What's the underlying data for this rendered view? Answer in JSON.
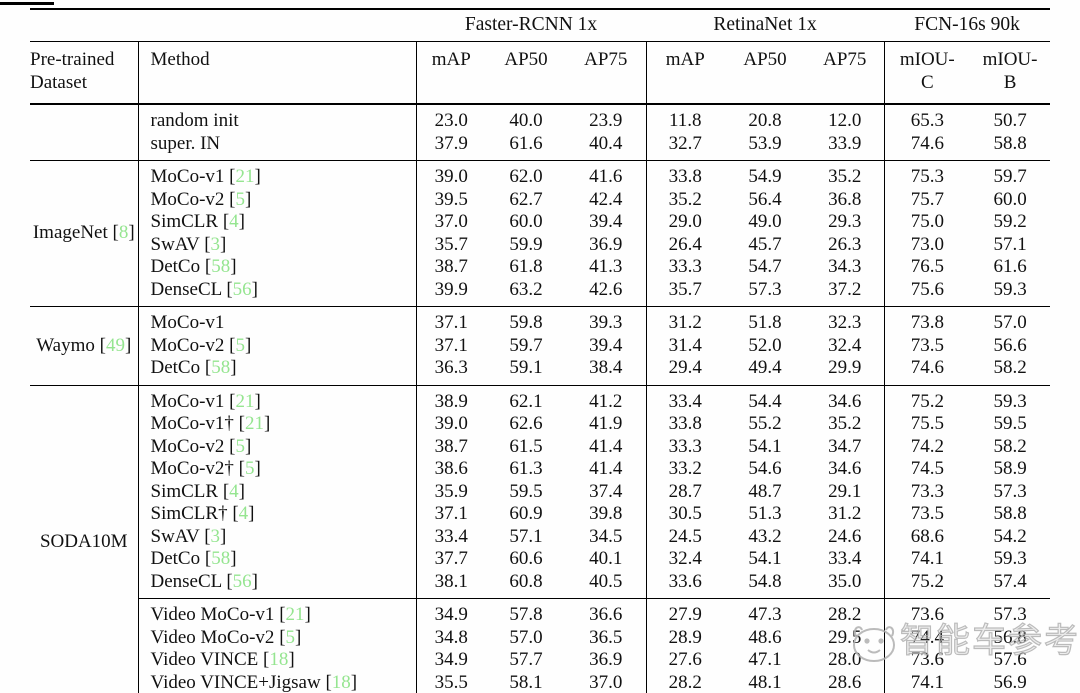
{
  "watermark": {
    "text": "智能车参考",
    "color": "#b0b0b0"
  },
  "table": {
    "cite_color": "#95e590",
    "groups": [
      {
        "label": "Faster-RCNN 1x",
        "span": 3
      },
      {
        "label": "RetinaNet 1x",
        "span": 3
      },
      {
        "label": "FCN-16s 90k",
        "span": 2
      }
    ],
    "col_headers": [
      "Pre-trained\nDataset",
      "Method",
      "mAP",
      "AP50",
      "AP75",
      "mAP",
      "AP50",
      "AP75",
      "mIOU-\nC",
      "mIOU-\nB"
    ],
    "sections": [
      {
        "dataset": null,
        "rows": [
          {
            "method": "random init",
            "cite": null,
            "vals": [
              "23.0",
              "40.0",
              "23.9",
              "11.8",
              "20.8",
              "12.0",
              "65.3",
              "50.7"
            ]
          },
          {
            "method": "super. IN",
            "cite": null,
            "vals": [
              "37.9",
              "61.6",
              "40.4",
              "32.7",
              "53.9",
              "33.9",
              "74.6",
              "58.8"
            ]
          }
        ]
      },
      {
        "dataset": {
          "label": "ImageNet",
          "cite": "8"
        },
        "rows": [
          {
            "method": "MoCo-v1",
            "cite": "21",
            "vals": [
              "39.0",
              "62.0",
              "41.6",
              "33.8",
              "54.9",
              "35.2",
              "75.3",
              "59.7"
            ]
          },
          {
            "method": "MoCo-v2",
            "cite": "5",
            "vals": [
              "39.5",
              "62.7",
              "42.4",
              "35.2",
              "56.4",
              "36.8",
              "75.7",
              "60.0"
            ]
          },
          {
            "method": "SimCLR",
            "cite": "4",
            "vals": [
              "37.0",
              "60.0",
              "39.4",
              "29.0",
              "49.0",
              "29.3",
              "75.0",
              "59.2"
            ]
          },
          {
            "method": "SwAV",
            "cite": "3",
            "vals": [
              "35.7",
              "59.9",
              "36.9",
              "26.4",
              "45.7",
              "26.3",
              "73.0",
              "57.1"
            ]
          },
          {
            "method": "DetCo",
            "cite": "58",
            "vals": [
              "38.7",
              "61.8",
              "41.3",
              "33.3",
              "54.7",
              "34.3",
              "76.5",
              "61.6"
            ]
          },
          {
            "method": "DenseCL",
            "cite": "56",
            "vals": [
              "39.9",
              "63.2",
              "42.6",
              "35.7",
              "57.3",
              "37.2",
              "75.6",
              "59.3"
            ]
          }
        ]
      },
      {
        "dataset": {
          "label": "Waymo",
          "cite": "49"
        },
        "rows": [
          {
            "method": "MoCo-v1",
            "cite": null,
            "vals": [
              "37.1",
              "59.8",
              "39.3",
              "31.2",
              "51.8",
              "32.3",
              "73.8",
              "57.0"
            ]
          },
          {
            "method": "MoCo-v2",
            "cite": "5",
            "vals": [
              "37.1",
              "59.7",
              "39.4",
              "31.4",
              "52.0",
              "32.4",
              "73.5",
              "56.6"
            ]
          },
          {
            "method": "DetCo",
            "cite": "58",
            "vals": [
              "36.3",
              "59.1",
              "38.4",
              "29.4",
              "49.4",
              "29.9",
              "74.6",
              "58.2"
            ]
          }
        ]
      },
      {
        "dataset": {
          "label": "SODA10M",
          "cite": null
        },
        "rows": [
          {
            "method": "MoCo-v1",
            "cite": "21",
            "vals": [
              "38.9",
              "62.1",
              "41.2",
              "33.4",
              "54.4",
              "34.6",
              "75.2",
              "59.3"
            ]
          },
          {
            "method": "MoCo-v1†",
            "cite": "21",
            "vals": [
              "39.0",
              "62.6",
              "41.9",
              "33.8",
              "55.2",
              "35.2",
              "75.5",
              "59.5"
            ]
          },
          {
            "method": "MoCo-v2",
            "cite": "5",
            "vals": [
              "38.7",
              "61.5",
              "41.4",
              "33.3",
              "54.1",
              "34.7",
              "74.2",
              "58.2"
            ]
          },
          {
            "method": "MoCo-v2†",
            "cite": "5",
            "vals": [
              "38.6",
              "61.3",
              "41.4",
              "33.2",
              "54.6",
              "34.6",
              "74.5",
              "58.9"
            ]
          },
          {
            "method": "SimCLR",
            "cite": "4",
            "vals": [
              "35.9",
              "59.5",
              "37.4",
              "28.7",
              "48.7",
              "29.1",
              "73.3",
              "57.3"
            ]
          },
          {
            "method": "SimCLR†",
            "cite": "4",
            "vals": [
              "37.1",
              "60.9",
              "39.8",
              "30.5",
              "51.3",
              "31.2",
              "73.5",
              "58.8"
            ]
          },
          {
            "method": "SwAV",
            "cite": "3",
            "vals": [
              "33.4",
              "57.1",
              "34.5",
              "24.5",
              "43.2",
              "24.6",
              "68.6",
              "54.2"
            ]
          },
          {
            "method": "DetCo",
            "cite": "58",
            "vals": [
              "37.7",
              "60.6",
              "40.1",
              "32.4",
              "54.1",
              "33.4",
              "74.1",
              "59.3"
            ]
          },
          {
            "method": "DenseCL",
            "cite": "56",
            "vals": [
              "38.1",
              "60.8",
              "40.5",
              "33.6",
              "54.8",
              "35.0",
              "75.2",
              "57.4"
            ]
          },
          {
            "method": "Video MoCo-v1",
            "cite": "21",
            "group_break": true,
            "vals": [
              "34.9",
              "57.8",
              "36.6",
              "27.9",
              "47.3",
              "28.2",
              "73.6",
              "57.3"
            ]
          },
          {
            "method": "Video MoCo-v2",
            "cite": "5",
            "vals": [
              "34.8",
              "57.0",
              "36.5",
              "28.9",
              "48.6",
              "29.5",
              "74.4",
              "56.8"
            ]
          },
          {
            "method": "Video VINCE",
            "cite": "18",
            "vals": [
              "34.9",
              "57.7",
              "36.9",
              "27.6",
              "47.1",
              "28.0",
              "73.6",
              "57.6"
            ]
          },
          {
            "method": "Video VINCE+Jigsaw",
            "cite": "18",
            "vals": [
              "35.5",
              "58.1",
              "37.0",
              "28.2",
              "48.1",
              "28.6",
              "74.1",
              "56.9"
            ]
          }
        ]
      }
    ]
  }
}
